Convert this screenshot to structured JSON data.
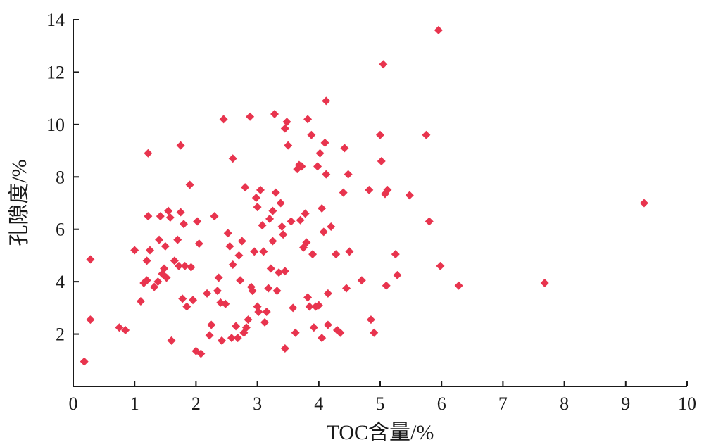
{
  "chart_data": {
    "type": "scatter",
    "title": "",
    "xlabel": "TOC含量/%",
    "ylabel": "孔隙度/%",
    "xlim": [
      0,
      10
    ],
    "ylim": [
      0,
      14
    ],
    "x_ticks": [
      0,
      1,
      2,
      3,
      4,
      5,
      6,
      7,
      8,
      9,
      10
    ],
    "y_ticks": [
      2,
      4,
      6,
      8,
      10,
      12,
      14
    ],
    "grid": false,
    "marker": "diamond",
    "marker_color": "#e8344e",
    "series": [
      {
        "points": [
          [
            0.18,
            0.95
          ],
          [
            0.28,
            4.85
          ],
          [
            0.28,
            2.55
          ],
          [
            0.75,
            2.25
          ],
          [
            0.85,
            2.15
          ],
          [
            1.0,
            5.2
          ],
          [
            1.1,
            3.25
          ],
          [
            1.15,
            3.95
          ],
          [
            1.2,
            4.05
          ],
          [
            1.2,
            4.8
          ],
          [
            1.22,
            8.9
          ],
          [
            1.22,
            6.5
          ],
          [
            1.25,
            5.2
          ],
          [
            1.32,
            3.8
          ],
          [
            1.38,
            4.0
          ],
          [
            1.4,
            5.6
          ],
          [
            1.42,
            6.5
          ],
          [
            1.45,
            4.3
          ],
          [
            1.48,
            4.5
          ],
          [
            1.5,
            5.35
          ],
          [
            1.52,
            4.15
          ],
          [
            1.55,
            6.7
          ],
          [
            1.58,
            6.45
          ],
          [
            1.6,
            1.75
          ],
          [
            1.65,
            4.8
          ],
          [
            1.7,
            5.6
          ],
          [
            1.72,
            4.6
          ],
          [
            1.75,
            6.65
          ],
          [
            1.75,
            9.2
          ],
          [
            1.78,
            3.35
          ],
          [
            1.8,
            6.2
          ],
          [
            1.82,
            4.6
          ],
          [
            1.85,
            3.05
          ],
          [
            1.9,
            7.7
          ],
          [
            1.92,
            4.55
          ],
          [
            1.95,
            3.3
          ],
          [
            2.0,
            1.35
          ],
          [
            2.02,
            6.3
          ],
          [
            2.05,
            5.45
          ],
          [
            2.08,
            1.25
          ],
          [
            2.18,
            3.55
          ],
          [
            2.22,
            1.95
          ],
          [
            2.25,
            2.35
          ],
          [
            2.3,
            6.5
          ],
          [
            2.35,
            3.65
          ],
          [
            2.37,
            4.15
          ],
          [
            2.4,
            3.2
          ],
          [
            2.42,
            1.75
          ],
          [
            2.45,
            10.2
          ],
          [
            2.48,
            3.15
          ],
          [
            2.52,
            5.85
          ],
          [
            2.55,
            5.35
          ],
          [
            2.58,
            1.85
          ],
          [
            2.6,
            8.7
          ],
          [
            2.6,
            4.65
          ],
          [
            2.65,
            2.3
          ],
          [
            2.68,
            1.85
          ],
          [
            2.7,
            5.0
          ],
          [
            2.72,
            4.05
          ],
          [
            2.75,
            5.55
          ],
          [
            2.78,
            2.05
          ],
          [
            2.8,
            7.6
          ],
          [
            2.82,
            2.25
          ],
          [
            2.85,
            2.55
          ],
          [
            2.88,
            10.3
          ],
          [
            2.9,
            3.8
          ],
          [
            2.92,
            3.65
          ],
          [
            2.95,
            5.15
          ],
          [
            2.98,
            7.2
          ],
          [
            3.0,
            6.85
          ],
          [
            3.0,
            3.05
          ],
          [
            3.02,
            2.85
          ],
          [
            3.05,
            7.5
          ],
          [
            3.08,
            6.15
          ],
          [
            3.1,
            5.15
          ],
          [
            3.12,
            2.45
          ],
          [
            3.15,
            2.85
          ],
          [
            3.18,
            3.75
          ],
          [
            3.2,
            6.4
          ],
          [
            3.22,
            4.5
          ],
          [
            3.25,
            6.7
          ],
          [
            3.25,
            5.55
          ],
          [
            3.28,
            10.4
          ],
          [
            3.3,
            7.4
          ],
          [
            3.32,
            3.65
          ],
          [
            3.35,
            4.35
          ],
          [
            3.38,
            7.0
          ],
          [
            3.4,
            6.1
          ],
          [
            3.42,
            5.8
          ],
          [
            3.45,
            1.45
          ],
          [
            3.45,
            4.4
          ],
          [
            3.45,
            9.85
          ],
          [
            3.48,
            10.1
          ],
          [
            3.5,
            9.2
          ],
          [
            3.55,
            6.3
          ],
          [
            3.58,
            3.0
          ],
          [
            3.62,
            2.05
          ],
          [
            3.65,
            8.3
          ],
          [
            3.68,
            8.45
          ],
          [
            3.7,
            6.35
          ],
          [
            3.72,
            8.4
          ],
          [
            3.75,
            5.3
          ],
          [
            3.78,
            6.6
          ],
          [
            3.8,
            5.5
          ],
          [
            3.82,
            10.2
          ],
          [
            3.82,
            3.4
          ],
          [
            3.85,
            3.05
          ],
          [
            3.88,
            9.6
          ],
          [
            3.9,
            5.05
          ],
          [
            3.92,
            2.25
          ],
          [
            3.95,
            3.05
          ],
          [
            3.98,
            8.4
          ],
          [
            4.0,
            3.1
          ],
          [
            4.02,
            8.9
          ],
          [
            4.05,
            6.8
          ],
          [
            4.05,
            1.85
          ],
          [
            4.08,
            5.9
          ],
          [
            4.1,
            9.3
          ],
          [
            4.12,
            8.1
          ],
          [
            4.12,
            10.9
          ],
          [
            4.15,
            3.55
          ],
          [
            4.15,
            2.35
          ],
          [
            4.2,
            6.1
          ],
          [
            4.28,
            5.05
          ],
          [
            4.3,
            2.15
          ],
          [
            4.35,
            2.05
          ],
          [
            4.4,
            7.4
          ],
          [
            4.42,
            9.1
          ],
          [
            4.45,
            3.75
          ],
          [
            4.48,
            8.1
          ],
          [
            4.5,
            5.15
          ],
          [
            4.7,
            4.05
          ],
          [
            4.82,
            7.5
          ],
          [
            4.85,
            2.55
          ],
          [
            4.9,
            2.05
          ],
          [
            5.0,
            9.6
          ],
          [
            5.02,
            8.6
          ],
          [
            5.05,
            12.3
          ],
          [
            5.08,
            7.35
          ],
          [
            5.1,
            3.85
          ],
          [
            5.12,
            7.5
          ],
          [
            5.25,
            5.05
          ],
          [
            5.28,
            4.25
          ],
          [
            5.48,
            7.3
          ],
          [
            5.75,
            9.6
          ],
          [
            5.8,
            6.3
          ],
          [
            5.95,
            13.6
          ],
          [
            5.98,
            4.6
          ],
          [
            6.28,
            3.85
          ],
          [
            7.68,
            3.95
          ],
          [
            9.3,
            7.0
          ]
        ]
      }
    ]
  }
}
